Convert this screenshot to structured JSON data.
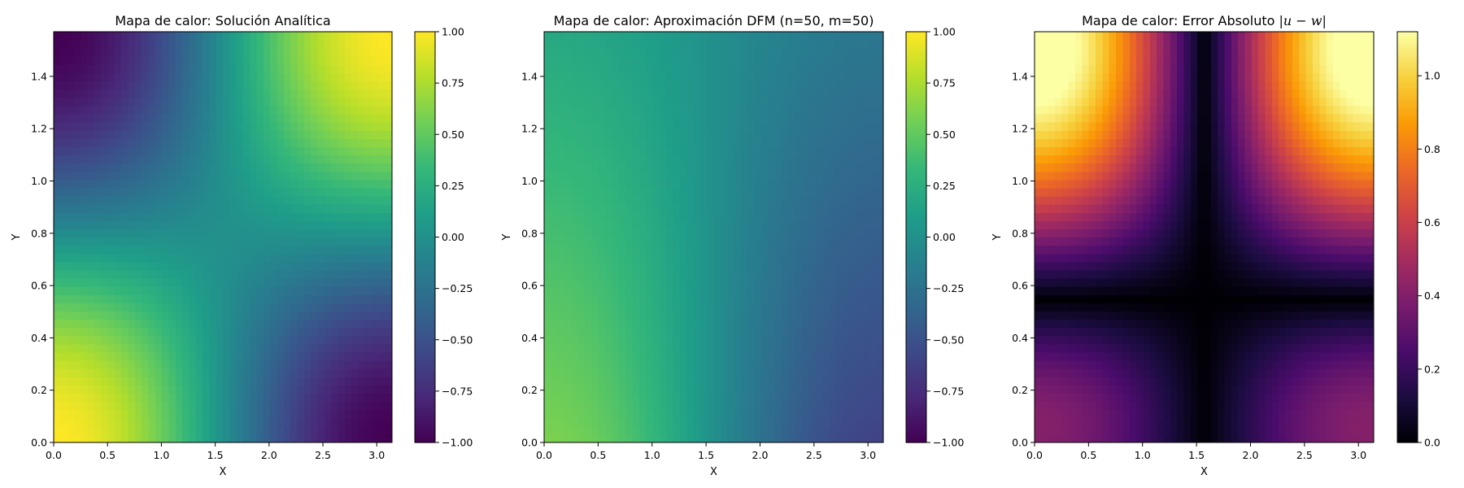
{
  "chart_data": [
    {
      "type": "heatmap",
      "title": "Mapa de calor: Solución Analítica",
      "xlabel": "X",
      "ylabel": "Y",
      "xlim": [
        0,
        3.1416
      ],
      "ylim": [
        0,
        1.5708
      ],
      "grid": false,
      "colormap": "viridis",
      "xticks": [
        "0.0",
        "0.5",
        "1.0",
        "1.5",
        "2.0",
        "2.5",
        "3.0"
      ],
      "yticks": [
        "0.0",
        "0.2",
        "0.4",
        "0.6",
        "0.8",
        "1.0",
        "1.2",
        "1.4"
      ],
      "colorbar": {
        "range": [
          -1.0,
          1.0
        ],
        "ticks": [
          "−1.00",
          "−0.75",
          "−0.50",
          "−0.25",
          "0.00",
          "0.25",
          "0.50",
          "0.75",
          "1.00"
        ]
      },
      "cells": {
        "nx": 50,
        "ny": 50,
        "function": "cos(x) * cos(2y)"
      }
    },
    {
      "type": "heatmap",
      "title": "Mapa de calor: Aproximación DFM (n=50, m=50)",
      "xlabel": "X",
      "ylabel": "Y",
      "xlim": [
        0,
        3.1416
      ],
      "ylim": [
        0,
        1.5708
      ],
      "grid": false,
      "colormap": "viridis",
      "xticks": [
        "0.0",
        "0.5",
        "1.0",
        "1.5",
        "2.0",
        "2.5",
        "3.0"
      ],
      "yticks": [
        "0.0",
        "0.2",
        "0.4",
        "0.6",
        "0.8",
        "1.0",
        "1.2",
        "1.4"
      ],
      "colorbar": {
        "range": [
          -1.0,
          1.0
        ],
        "ticks": [
          "−1.00",
          "−0.75",
          "−0.50",
          "−0.25",
          "0.00",
          "0.25",
          "0.50",
          "0.75",
          "1.00"
        ]
      },
      "cells": {
        "nx": 50,
        "ny": 50,
        "function": "cos(x) * (0.6 - 0.4*y/ylim)"
      }
    },
    {
      "type": "heatmap",
      "title": "Mapa de calor: Error Absoluto |u − w|",
      "title_plain": "Mapa de calor: Error Absoluto ",
      "title_math": "|u − w|",
      "xlabel": "X",
      "ylabel": "Y",
      "xlim": [
        0,
        3.1416
      ],
      "ylim": [
        0,
        1.5708
      ],
      "grid": false,
      "colormap": "inferno",
      "xticks": [
        "0.0",
        "0.5",
        "1.0",
        "1.5",
        "2.0",
        "2.5",
        "3.0"
      ],
      "yticks": [
        "0.0",
        "0.2",
        "0.4",
        "0.6",
        "0.8",
        "1.0",
        "1.2",
        "1.4"
      ],
      "colorbar": {
        "range": [
          0.0,
          1.12
        ],
        "ticks": [
          "0.0",
          "0.2",
          "0.4",
          "0.6",
          "0.8",
          "1.0"
        ]
      },
      "cells": {
        "nx": 50,
        "ny": 50,
        "function": "|u - w|"
      }
    }
  ]
}
